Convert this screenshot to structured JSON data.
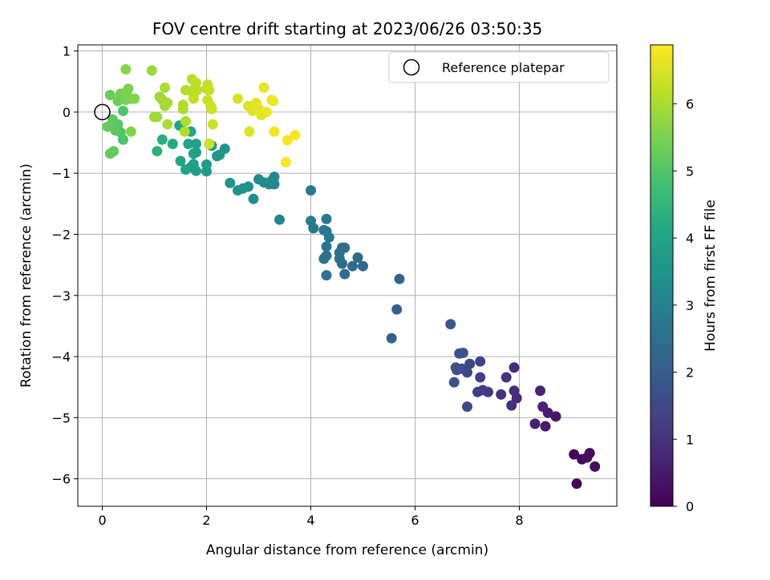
{
  "chart_data": {
    "type": "scatter",
    "title": "FOV centre drift starting at 2023/06/26 03:50:35",
    "xlabel": "Angular distance from reference (arcmin)",
    "ylabel": "Rotation from reference (arcmin)",
    "colorbar_label": "Hours from first FF file",
    "xlim": [
      -0.47,
      9.87
    ],
    "ylim": [
      -6.45,
      1.1
    ],
    "x_ticks": [
      0,
      2,
      4,
      6,
      8
    ],
    "y_ticks": [
      1,
      0,
      -1,
      -2,
      -3,
      -4,
      -5,
      -6
    ],
    "colorbar_ticks": [
      0,
      1,
      2,
      3,
      4,
      5,
      6
    ],
    "colorbar_range": [
      0,
      6.88
    ],
    "colormap": "viridis",
    "grid": true,
    "legend": {
      "placement": "top-right",
      "entries": [
        "Reference platepar"
      ]
    },
    "reference_point": {
      "x": 0,
      "y": 0
    },
    "points": [
      {
        "x": 9.1,
        "y": -6.08,
        "h": 0.05
      },
      {
        "x": 9.05,
        "y": -5.6,
        "h": 0.1
      },
      {
        "x": 9.2,
        "y": -5.68,
        "h": 0.15
      },
      {
        "x": 9.35,
        "y": -5.58,
        "h": 0.2
      },
      {
        "x": 9.45,
        "y": -5.8,
        "h": 0.25
      },
      {
        "x": 9.3,
        "y": -5.65,
        "h": 0.3
      },
      {
        "x": 8.7,
        "y": -4.98,
        "h": 0.45
      },
      {
        "x": 8.5,
        "y": -5.14,
        "h": 0.5
      },
      {
        "x": 8.55,
        "y": -4.92,
        "h": 0.55
      },
      {
        "x": 8.3,
        "y": -5.1,
        "h": 0.6
      },
      {
        "x": 8.45,
        "y": -4.82,
        "h": 0.65
      },
      {
        "x": 8.4,
        "y": -4.56,
        "h": 0.7
      },
      {
        "x": 7.95,
        "y": -4.68,
        "h": 0.8
      },
      {
        "x": 7.9,
        "y": -4.18,
        "h": 0.85
      },
      {
        "x": 7.9,
        "y": -4.56,
        "h": 0.9
      },
      {
        "x": 7.85,
        "y": -4.8,
        "h": 0.95
      },
      {
        "x": 7.75,
        "y": -4.34,
        "h": 1.0
      },
      {
        "x": 7.65,
        "y": -4.62,
        "h": 1.05
      },
      {
        "x": 7.4,
        "y": -4.58,
        "h": 1.15
      },
      {
        "x": 7.3,
        "y": -4.55,
        "h": 1.2
      },
      {
        "x": 7.2,
        "y": -4.58,
        "h": 1.25
      },
      {
        "x": 7.25,
        "y": -4.34,
        "h": 1.3
      },
      {
        "x": 7.25,
        "y": -4.08,
        "h": 1.35
      },
      {
        "x": 7.0,
        "y": -4.26,
        "h": 1.4
      },
      {
        "x": 7.05,
        "y": -4.12,
        "h": 1.45
      },
      {
        "x": 7.0,
        "y": -4.82,
        "h": 1.5
      },
      {
        "x": 6.9,
        "y": -4.2,
        "h": 1.55
      },
      {
        "x": 6.8,
        "y": -4.22,
        "h": 1.6
      },
      {
        "x": 6.78,
        "y": -4.18,
        "h": 1.62
      },
      {
        "x": 6.85,
        "y": -3.95,
        "h": 1.65
      },
      {
        "x": 6.92,
        "y": -3.94,
        "h": 1.68
      },
      {
        "x": 6.75,
        "y": -4.42,
        "h": 1.7
      },
      {
        "x": 6.68,
        "y": -3.47,
        "h": 1.85
      },
      {
        "x": 5.55,
        "y": -3.7,
        "h": 2.1
      },
      {
        "x": 5.65,
        "y": -3.23,
        "h": 2.15
      },
      {
        "x": 5.7,
        "y": -2.73,
        "h": 2.2
      },
      {
        "x": 5.0,
        "y": -2.52,
        "h": 2.3
      },
      {
        "x": 4.9,
        "y": -2.38,
        "h": 2.33
      },
      {
        "x": 4.8,
        "y": -2.52,
        "h": 2.36
      },
      {
        "x": 4.65,
        "y": -2.65,
        "h": 2.39
      },
      {
        "x": 4.6,
        "y": -2.48,
        "h": 2.42
      },
      {
        "x": 4.55,
        "y": -2.3,
        "h": 2.45
      },
      {
        "x": 4.6,
        "y": -2.22,
        "h": 2.48
      },
      {
        "x": 4.65,
        "y": -2.22,
        "h": 2.51
      },
      {
        "x": 4.55,
        "y": -2.4,
        "h": 2.54
      },
      {
        "x": 4.3,
        "y": -2.67,
        "h": 2.57
      },
      {
        "x": 4.3,
        "y": -2.35,
        "h": 2.6
      },
      {
        "x": 4.25,
        "y": -2.4,
        "h": 2.63
      },
      {
        "x": 4.3,
        "y": -2.2,
        "h": 2.66
      },
      {
        "x": 4.35,
        "y": -2.05,
        "h": 2.69
      },
      {
        "x": 4.3,
        "y": -1.95,
        "h": 2.72
      },
      {
        "x": 4.25,
        "y": -1.93,
        "h": 2.75
      },
      {
        "x": 4.3,
        "y": -1.75,
        "h": 2.78
      },
      {
        "x": 4.05,
        "y": -1.9,
        "h": 2.81
      },
      {
        "x": 4.0,
        "y": -1.78,
        "h": 2.84
      },
      {
        "x": 4.0,
        "y": -1.28,
        "h": 2.87
      },
      {
        "x": 3.4,
        "y": -1.76,
        "h": 3.05
      },
      {
        "x": 3.3,
        "y": -1.18,
        "h": 3.1
      },
      {
        "x": 3.25,
        "y": -1.12,
        "h": 3.13
      },
      {
        "x": 3.3,
        "y": -1.06,
        "h": 3.16
      },
      {
        "x": 3.2,
        "y": -1.18,
        "h": 3.19
      },
      {
        "x": 3.1,
        "y": -1.15,
        "h": 3.22
      },
      {
        "x": 3.0,
        "y": -1.1,
        "h": 3.25
      },
      {
        "x": 2.9,
        "y": -1.42,
        "h": 3.3
      },
      {
        "x": 2.8,
        "y": -1.22,
        "h": 3.35
      },
      {
        "x": 2.7,
        "y": -1.25,
        "h": 3.4
      },
      {
        "x": 2.6,
        "y": -1.28,
        "h": 3.45
      },
      {
        "x": 2.45,
        "y": -1.16,
        "h": 3.5
      },
      {
        "x": 2.35,
        "y": -0.6,
        "h": 3.55
      },
      {
        "x": 2.25,
        "y": -0.7,
        "h": 3.58
      },
      {
        "x": 2.2,
        "y": -0.72,
        "h": 3.61
      },
      {
        "x": 2.1,
        "y": -0.55,
        "h": 3.64
      },
      {
        "x": 2.05,
        "y": -0.52,
        "h": 3.67
      },
      {
        "x": 2.0,
        "y": -0.86,
        "h": 3.7
      },
      {
        "x": 2.0,
        "y": -0.97,
        "h": 3.73
      },
      {
        "x": 1.8,
        "y": -0.96,
        "h": 3.76
      },
      {
        "x": 1.75,
        "y": -0.85,
        "h": 3.79
      },
      {
        "x": 1.7,
        "y": -0.9,
        "h": 3.82
      },
      {
        "x": 1.8,
        "y": -0.52,
        "h": 3.85
      },
      {
        "x": 1.8,
        "y": -0.66,
        "h": 3.88
      },
      {
        "x": 1.75,
        "y": -0.68,
        "h": 3.91
      },
      {
        "x": 1.65,
        "y": -0.52,
        "h": 3.94
      },
      {
        "x": 1.6,
        "y": -0.94,
        "h": 3.97
      },
      {
        "x": 1.5,
        "y": -0.8,
        "h": 4.0
      },
      {
        "x": 1.48,
        "y": -0.22,
        "h": 4.03
      },
      {
        "x": 1.7,
        "y": -0.32,
        "h": 4.06
      },
      {
        "x": 1.35,
        "y": -0.52,
        "h": 4.15
      },
      {
        "x": 1.15,
        "y": -0.45,
        "h": 4.3
      },
      {
        "x": 1.05,
        "y": -0.64,
        "h": 4.4
      },
      {
        "x": 0.4,
        "y": -0.45,
        "h": 4.9
      },
      {
        "x": 0.4,
        "y": 0.02,
        "h": 4.95
      },
      {
        "x": 0.35,
        "y": -0.33,
        "h": 5.0
      },
      {
        "x": 0.3,
        "y": -0.2,
        "h": 5.05
      },
      {
        "x": 0.25,
        "y": -0.22,
        "h": 5.1
      },
      {
        "x": 0.25,
        "y": -0.3,
        "h": 5.12
      },
      {
        "x": 0.2,
        "y": -0.12,
        "h": 5.15
      },
      {
        "x": 0.22,
        "y": -0.64,
        "h": 5.2
      },
      {
        "x": 0.15,
        "y": -0.68,
        "h": 5.22
      },
      {
        "x": 0.1,
        "y": -0.24,
        "h": 5.25
      },
      {
        "x": 0.15,
        "y": 0.28,
        "h": 5.3
      },
      {
        "x": 0.3,
        "y": 0.18,
        "h": 5.35
      },
      {
        "x": 0.35,
        "y": 0.3,
        "h": 5.4
      },
      {
        "x": 0.45,
        "y": 0.2,
        "h": 5.45
      },
      {
        "x": 0.5,
        "y": 0.38,
        "h": 5.5
      },
      {
        "x": 0.45,
        "y": 0.32,
        "h": 5.52
      },
      {
        "x": 0.55,
        "y": 0.22,
        "h": 5.55
      },
      {
        "x": 0.55,
        "y": -0.32,
        "h": 5.58
      },
      {
        "x": 0.62,
        "y": 0.22,
        "h": 5.6
      },
      {
        "x": 0.45,
        "y": 0.7,
        "h": 5.65
      },
      {
        "x": 0.95,
        "y": 0.68,
        "h": 5.8
      },
      {
        "x": 1.0,
        "y": -0.08,
        "h": 5.85
      },
      {
        "x": 1.05,
        "y": -0.08,
        "h": 5.88
      },
      {
        "x": 1.1,
        "y": 0.25,
        "h": 5.9
      },
      {
        "x": 1.15,
        "y": 0.2,
        "h": 5.92
      },
      {
        "x": 1.2,
        "y": 0.1,
        "h": 5.94
      },
      {
        "x": 1.25,
        "y": 0.15,
        "h": 5.96
      },
      {
        "x": 1.2,
        "y": 0.4,
        "h": 5.98
      },
      {
        "x": 1.25,
        "y": -0.2,
        "h": 6.0
      },
      {
        "x": 1.55,
        "y": 0.05,
        "h": 6.02
      },
      {
        "x": 1.55,
        "y": 0.12,
        "h": 6.04
      },
      {
        "x": 1.6,
        "y": -0.15,
        "h": 6.06
      },
      {
        "x": 1.58,
        "y": -0.32,
        "h": 6.08
      },
      {
        "x": 1.6,
        "y": 0.36,
        "h": 6.1
      },
      {
        "x": 1.72,
        "y": 0.54,
        "h": 6.12
      },
      {
        "x": 1.75,
        "y": 0.28,
        "h": 6.14
      },
      {
        "x": 1.78,
        "y": 0.4,
        "h": 6.16
      },
      {
        "x": 1.8,
        "y": 0.48,
        "h": 6.18
      },
      {
        "x": 1.82,
        "y": 0.36,
        "h": 6.2
      },
      {
        "x": 1.75,
        "y": 0.22,
        "h": 6.22
      },
      {
        "x": 2.0,
        "y": 0.38,
        "h": 6.24
      },
      {
        "x": 2.02,
        "y": 0.45,
        "h": 6.26
      },
      {
        "x": 2.05,
        "y": 0.36,
        "h": 6.28
      },
      {
        "x": 2.02,
        "y": 0.2,
        "h": 6.3
      },
      {
        "x": 2.08,
        "y": 0.1,
        "h": 6.32
      },
      {
        "x": 2.1,
        "y": 0.05,
        "h": 6.34
      },
      {
        "x": 2.12,
        "y": -0.2,
        "h": 6.36
      },
      {
        "x": 2.05,
        "y": -0.52,
        "h": 6.38
      },
      {
        "x": 2.6,
        "y": 0.22,
        "h": 6.45
      },
      {
        "x": 2.8,
        "y": 0.1,
        "h": 6.5
      },
      {
        "x": 2.82,
        "y": -0.32,
        "h": 6.52
      },
      {
        "x": 2.88,
        "y": 0.02,
        "h": 6.55
      },
      {
        "x": 2.95,
        "y": 0.15,
        "h": 6.58
      },
      {
        "x": 3.0,
        "y": 0.05,
        "h": 6.6
      },
      {
        "x": 3.05,
        "y": -0.05,
        "h": 6.62
      },
      {
        "x": 3.1,
        "y": 0.4,
        "h": 6.65
      },
      {
        "x": 3.15,
        "y": 0.0,
        "h": 6.68
      },
      {
        "x": 3.25,
        "y": 0.2,
        "h": 6.7
      },
      {
        "x": 3.28,
        "y": 0.18,
        "h": 6.72
      },
      {
        "x": 3.3,
        "y": -0.32,
        "h": 6.74
      },
      {
        "x": 3.55,
        "y": -0.46,
        "h": 6.78
      },
      {
        "x": 3.52,
        "y": -0.82,
        "h": 6.8
      },
      {
        "x": 3.7,
        "y": -0.38,
        "h": 6.83
      }
    ]
  }
}
